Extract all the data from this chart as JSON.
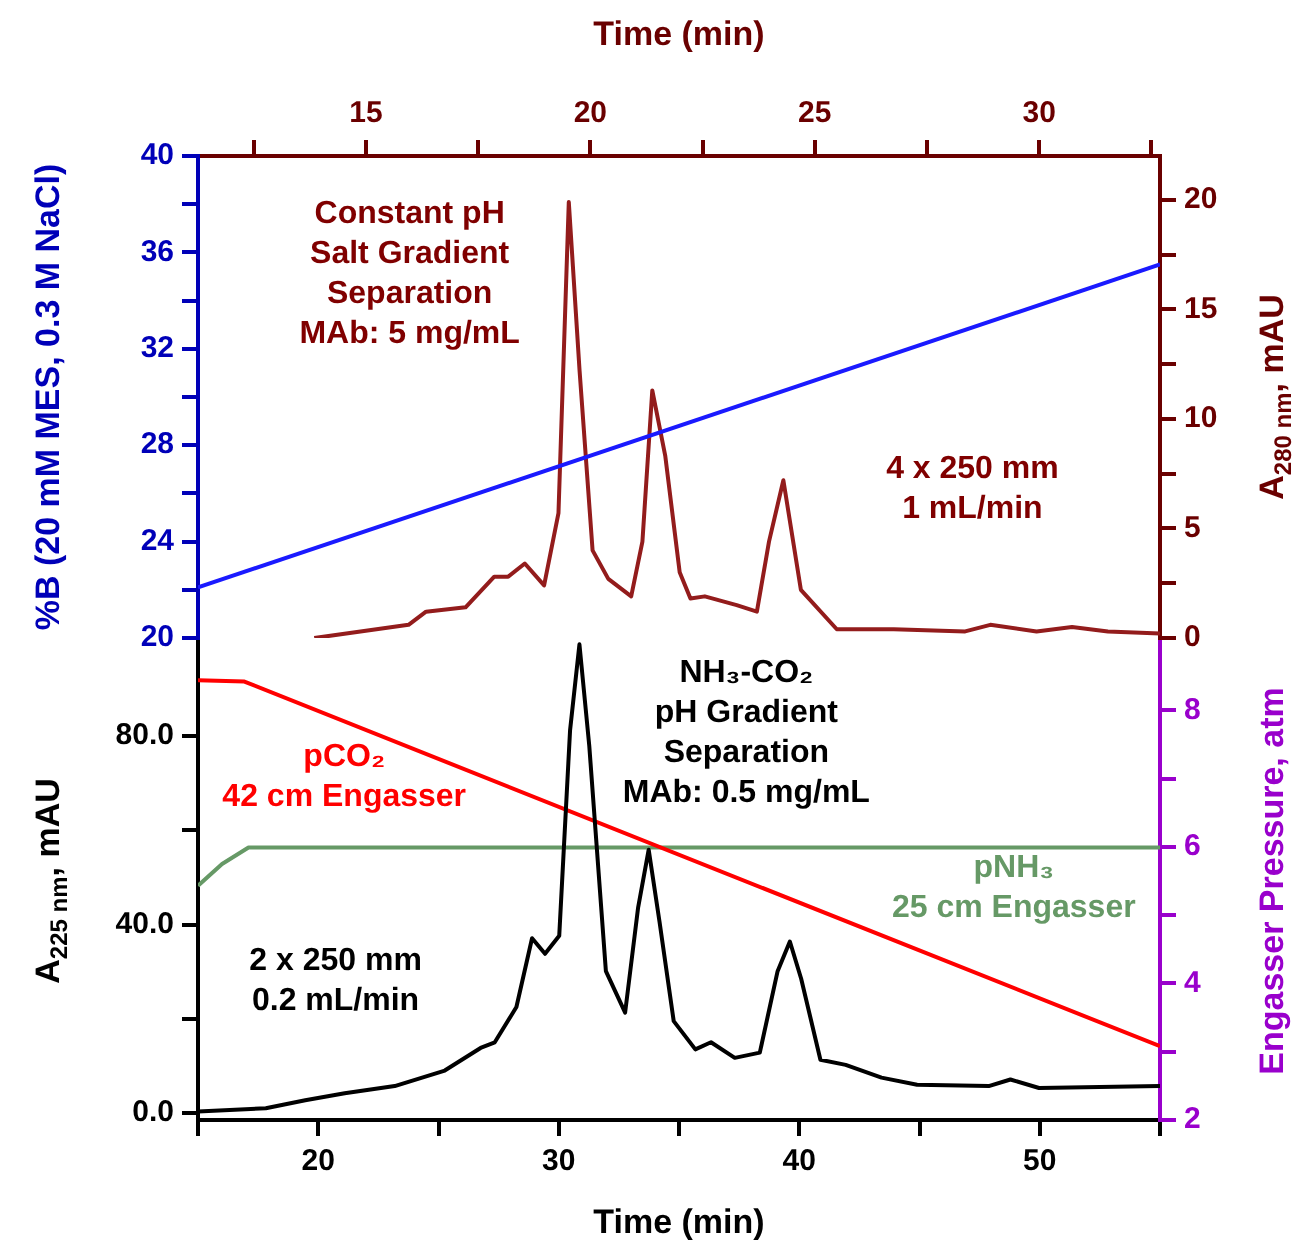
{
  "chart_data": [
    {
      "type": "line",
      "xlabel": "Time (min)",
      "ylabel": "%B (20 mM MES, 0.3 M NaCl)",
      "y2label": "A$_{280 nm}$, mAU",
      "xlim": [
        11.26,
        32.69
      ],
      "xticks": [
        {
          "value": 12.5,
          "label": null
        },
        15,
        {
          "value": 17.5,
          "label": null
        },
        20,
        {
          "value": 22.5,
          "label": null
        },
        25,
        {
          "value": 27.5,
          "label": null
        },
        30,
        {
          "value": 32.5,
          "label": null
        }
      ],
      "ylim": [
        20,
        40
      ],
      "yticks": [
        20,
        {
          "value": 22,
          "label": null
        },
        24,
        {
          "value": 26,
          "label": null
        },
        28,
        {
          "value": 30,
          "label": null
        },
        32,
        {
          "value": 34,
          "label": null
        },
        36,
        {
          "value": 38,
          "label": null
        },
        40
      ],
      "y2lim": [
        0,
        22
      ],
      "y2ticks": [
        0,
        {
          "value": 2.5,
          "label": null
        },
        5,
        {
          "value": 7.5,
          "label": null
        },
        10,
        {
          "value": 12.5,
          "label": null
        },
        15,
        {
          "value": 17.5,
          "label": null
        },
        20
      ],
      "grid": false,
      "legend": false,
      "marker": "none",
      "line_style": "solid",
      "annotations": [
        "Constant pH\nSalt Gradient\nSeparation\nMAb: 5 mg/mL",
        "4 x 250 mm\n1 mL/min"
      ],
      "series": [
        {
          "color": "#1a1aff",
          "x": [
            11.26,
            32.69
          ],
          "values": [
            22.1,
            35.5
          ]
        },
        {
          "color": "#931c1c",
          "axis": "y2",
          "x": [
            13.85,
            15.95,
            16.34,
            17.22,
            17.86,
            18.17,
            18.54,
            18.97,
            19.29,
            19.52,
            19.76,
            20.05,
            20.4,
            20.91,
            21.16,
            21.38,
            21.67,
            21.99,
            22.23,
            22.55,
            23.26,
            23.71,
            23.98,
            24.3,
            24.69,
            25.49,
            26.76,
            28.35,
            28.91,
            29.94,
            30.73,
            31.53,
            32.69
          ],
          "values": [
            0,
            0.6,
            1.2,
            1.4,
            2.8,
            2.8,
            3.4,
            2.4,
            5.7,
            19.9,
            12.2,
            4.0,
            2.7,
            1.9,
            4.4,
            11.3,
            8.3,
            3.0,
            1.8,
            1.9,
            1.5,
            1.2,
            4.4,
            7.2,
            2.2,
            0.4,
            0.4,
            0.3,
            0.6,
            0.3,
            0.5,
            0.3,
            0.2
          ]
        }
      ]
    },
    {
      "type": "line",
      "xlabel": "Time (min)",
      "ylabel": "A$_{225 nm}$, mAU",
      "y2label": "Engasser Pressure, atm",
      "xlim": [
        15,
        55
      ],
      "xticks": [
        {
          "value": 15,
          "label": null
        },
        20,
        {
          "value": 25,
          "label": null
        },
        30,
        {
          "value": 35,
          "label": null
        },
        40,
        {
          "value": 45,
          "label": null
        },
        50,
        {
          "value": 55,
          "label": null
        }
      ],
      "ylim": [
        -1.5,
        100
      ],
      "yticks": [
        {
          "value": 0,
          "label": "0.0"
        },
        {
          "value": 20,
          "label": null
        },
        {
          "value": 40,
          "label": "40.0"
        },
        {
          "value": 60,
          "label": null
        },
        {
          "value": 80,
          "label": "80.0"
        }
      ],
      "y2lim": [
        2,
        9
      ],
      "y2ticks": [
        2,
        {
          "value": 3,
          "label": null
        },
        4,
        {
          "value": 5,
          "label": null
        },
        6,
        {
          "value": 7,
          "label": null
        },
        8
      ],
      "grid": false,
      "legend": false,
      "marker": "none",
      "line_style": "solid",
      "annotations": [
        "NH₃-CO₂\npH Gradient\nSeparation\nMAb: 0.5 mg/mL",
        "2 x 250 mm\n0.2 mL/min"
      ],
      "series": [
        {
          "color": "#000000",
          "x": [
            15,
            17.82,
            19.46,
            21.1,
            23.18,
            25.26,
            26.75,
            27.34,
            28.24,
            28.89,
            29.43,
            30.02,
            30.47,
            30.86,
            31.27,
            31.96,
            32.76,
            33.3,
            33.74,
            34.19,
            34.78,
            35.68,
            36.33,
            37.32,
            38.36,
            39.1,
            39.61,
            40.08,
            40.88,
            41.93,
            43.42,
            44.9,
            47.88,
            48.78,
            49.97,
            55
          ],
          "values": [
            0.3,
            1.0,
            2.7,
            4.2,
            5.7,
            9.0,
            13.8,
            15.0,
            22.5,
            37.1,
            33.8,
            37.6,
            81.2,
            99.5,
            77.9,
            30.1,
            21.3,
            43.6,
            55.9,
            40.6,
            19.5,
            13.5,
            15.0,
            11.7,
            12.8,
            30.1,
            36.4,
            28.5,
            11.3,
            10.2,
            7.5,
            6.0,
            5.7,
            7.1,
            5.3,
            5.7
          ]
        },
        {
          "name": "pCO₂\n42 cm Engasser",
          "color": "#ff0000",
          "axis": "y2",
          "x": [
            15,
            16.93,
            55
          ],
          "values": [
            8.44,
            8.42,
            3.08
          ]
        },
        {
          "name": "pNH₃\n25 cm Engasser",
          "color": "#669966",
          "axis": "y2",
          "x": [
            15,
            16,
            17.1,
            55
          ],
          "values": [
            5.43,
            5.75,
            5.99,
            5.99
          ]
        }
      ]
    }
  ]
}
